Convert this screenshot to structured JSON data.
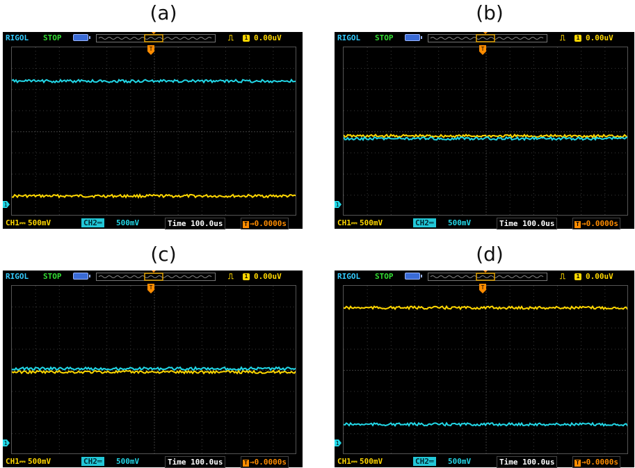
{
  "panels": [
    {
      "id": "a",
      "label": "(a)",
      "ch1_level": 0.12,
      "ch2_level": 0.8
    },
    {
      "id": "b",
      "label": "(b)",
      "ch1_level": 0.475,
      "ch2_level": 0.46
    },
    {
      "id": "c",
      "label": "(c)",
      "ch1_level": 0.49,
      "ch2_level": 0.51
    },
    {
      "id": "d",
      "label": "(d)",
      "ch1_level": 0.87,
      "ch2_level": 0.18
    }
  ],
  "scope": {
    "brand": "RIGOL",
    "status": "STOP",
    "trigger_edge_symbol": "⎍",
    "trigger_channel": "1",
    "trigger_level": "0.00uV",
    "ch1_label": "CH1⎓",
    "ch1_scale": "500mV",
    "ch2_label": "CH2═",
    "ch2_scale": "500mV",
    "time_label": "Time",
    "time_value": "100.0us",
    "trigger_offset_icon": "T",
    "trigger_offset": "→0.0000s",
    "ch1_marker": "1"
  },
  "colors": {
    "ch1": "#ffd700",
    "ch2": "#22d8e8",
    "grid": "#3c3c3c",
    "background": "#000000"
  }
}
